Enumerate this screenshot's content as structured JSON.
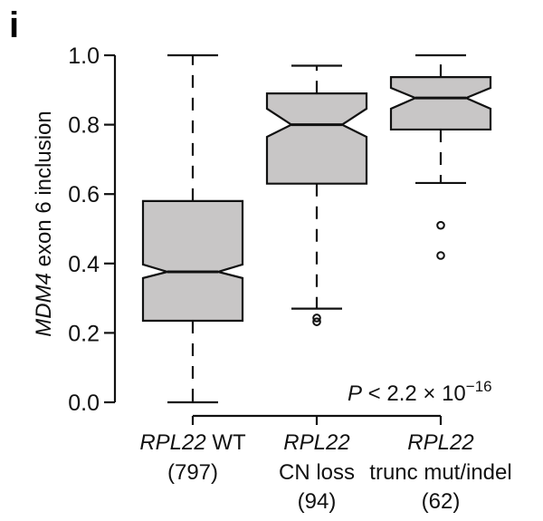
{
  "figure": {
    "panel_label": "i",
    "annotation": {
      "prefix": "P",
      "text": " < 2.2 × 10",
      "exponent": "−16"
    }
  },
  "chart_data": {
    "type": "boxplot",
    "notched": true,
    "title": "",
    "xlabel": "",
    "ylabel": "MDM4 exon 6 inclusion",
    "ylabel_italic_part": "MDM4",
    "ylabel_rest": " exon 6 inclusion",
    "ylim": [
      0.0,
      1.0
    ],
    "yticks": [
      0.0,
      0.2,
      0.4,
      0.6,
      0.8,
      1.0
    ],
    "ytick_labels": [
      "0.0",
      "0.2",
      "0.4",
      "0.6",
      "0.8",
      "1.0"
    ],
    "grid": false,
    "box_fill": "#c8c6c6",
    "categories": [
      {
        "italic": "RPL22",
        "line1_rest": " WT",
        "line2": "(797)",
        "line3": "",
        "n": 797
      },
      {
        "italic": "RPL22",
        "line1_rest": "",
        "line2": "CN loss",
        "line3": "(94)",
        "n": 94
      },
      {
        "italic": "RPL22",
        "line1_rest": "",
        "line2": "trunc mut/indel",
        "line3": "(62)",
        "n": 62
      }
    ],
    "series": [
      {
        "name": "RPL22 WT",
        "whisker_low": 0.0,
        "q1": 0.235,
        "median": 0.376,
        "q3": 0.58,
        "whisker_high": 1.0,
        "notch_low": 0.358,
        "notch_high": 0.397,
        "outliers": []
      },
      {
        "name": "RPL22 CN loss",
        "whisker_low": 0.27,
        "q1": 0.63,
        "median": 0.8,
        "q3": 0.89,
        "whisker_high": 0.97,
        "notch_low": 0.765,
        "notch_high": 0.846,
        "outliers": [
          0.243,
          0.232
        ]
      },
      {
        "name": "RPL22 trunc mut/indel",
        "whisker_low": 0.632,
        "q1": 0.786,
        "median": 0.877,
        "q3": 0.937,
        "whisker_high": 1.0,
        "notch_low": 0.846,
        "notch_high": 0.906,
        "outliers": [
          0.51,
          0.423
        ]
      }
    ],
    "annotations": [
      "P < 2.2 × 10^-16"
    ]
  }
}
